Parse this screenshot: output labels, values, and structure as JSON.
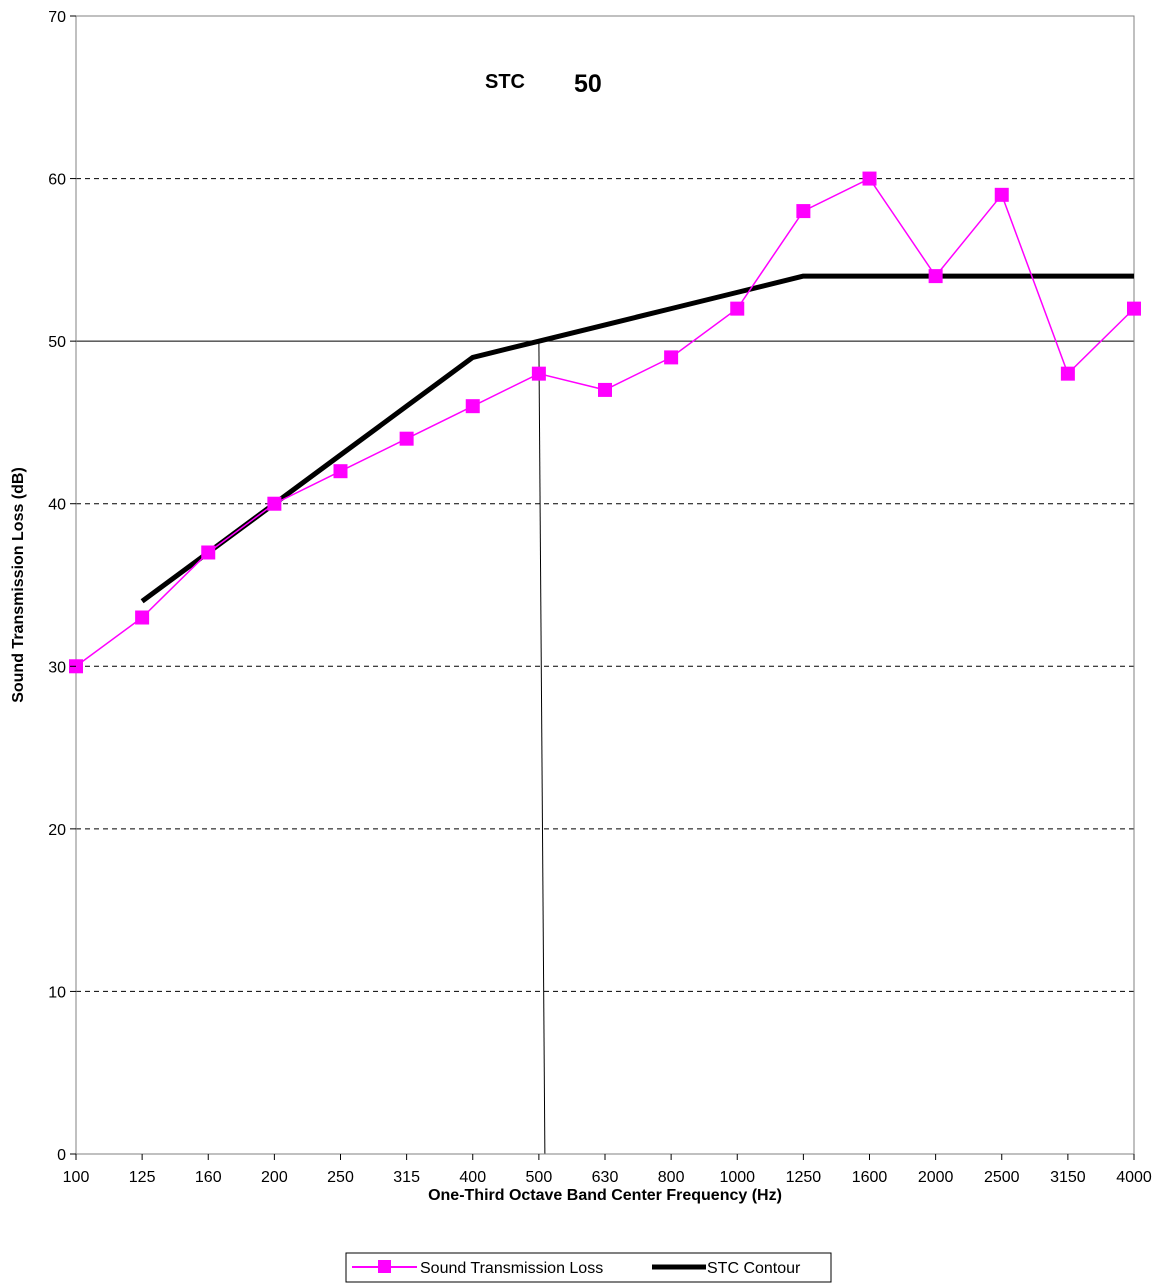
{
  "chart_data": {
    "type": "line",
    "title": "",
    "annotation": {
      "label": "STC",
      "value": "50"
    },
    "xlabel": "One-Third Octave Band Center Frequency (Hz)",
    "ylabel": "Sound Transmission Loss (dB)",
    "categories": [
      "100",
      "125",
      "160",
      "200",
      "250",
      "315",
      "400",
      "500",
      "630",
      "800",
      "1000",
      "1250",
      "1600",
      "2000",
      "2500",
      "3150",
      "4000"
    ],
    "ylim": [
      0,
      70
    ],
    "yticks": [
      0,
      10,
      20,
      30,
      40,
      50,
      60,
      70
    ],
    "grid": "horizontal dashed",
    "legend_position": "bottom",
    "series": [
      {
        "name": "Sound Transmission Loss",
        "color": "#ff00ff",
        "marker": "square",
        "values": [
          30,
          33,
          37,
          40,
          42,
          44,
          46,
          48,
          47,
          49,
          52,
          58,
          60,
          54,
          59,
          48,
          52
        ]
      },
      {
        "name": "STC Contour",
        "color": "#000000",
        "marker": "none",
        "values": [
          null,
          34,
          37,
          40,
          43,
          46,
          49,
          50,
          51,
          52,
          53,
          54,
          54,
          54,
          54,
          54,
          54
        ]
      }
    ],
    "reference_lines": {
      "y_value": 50,
      "x_category": "500"
    }
  }
}
